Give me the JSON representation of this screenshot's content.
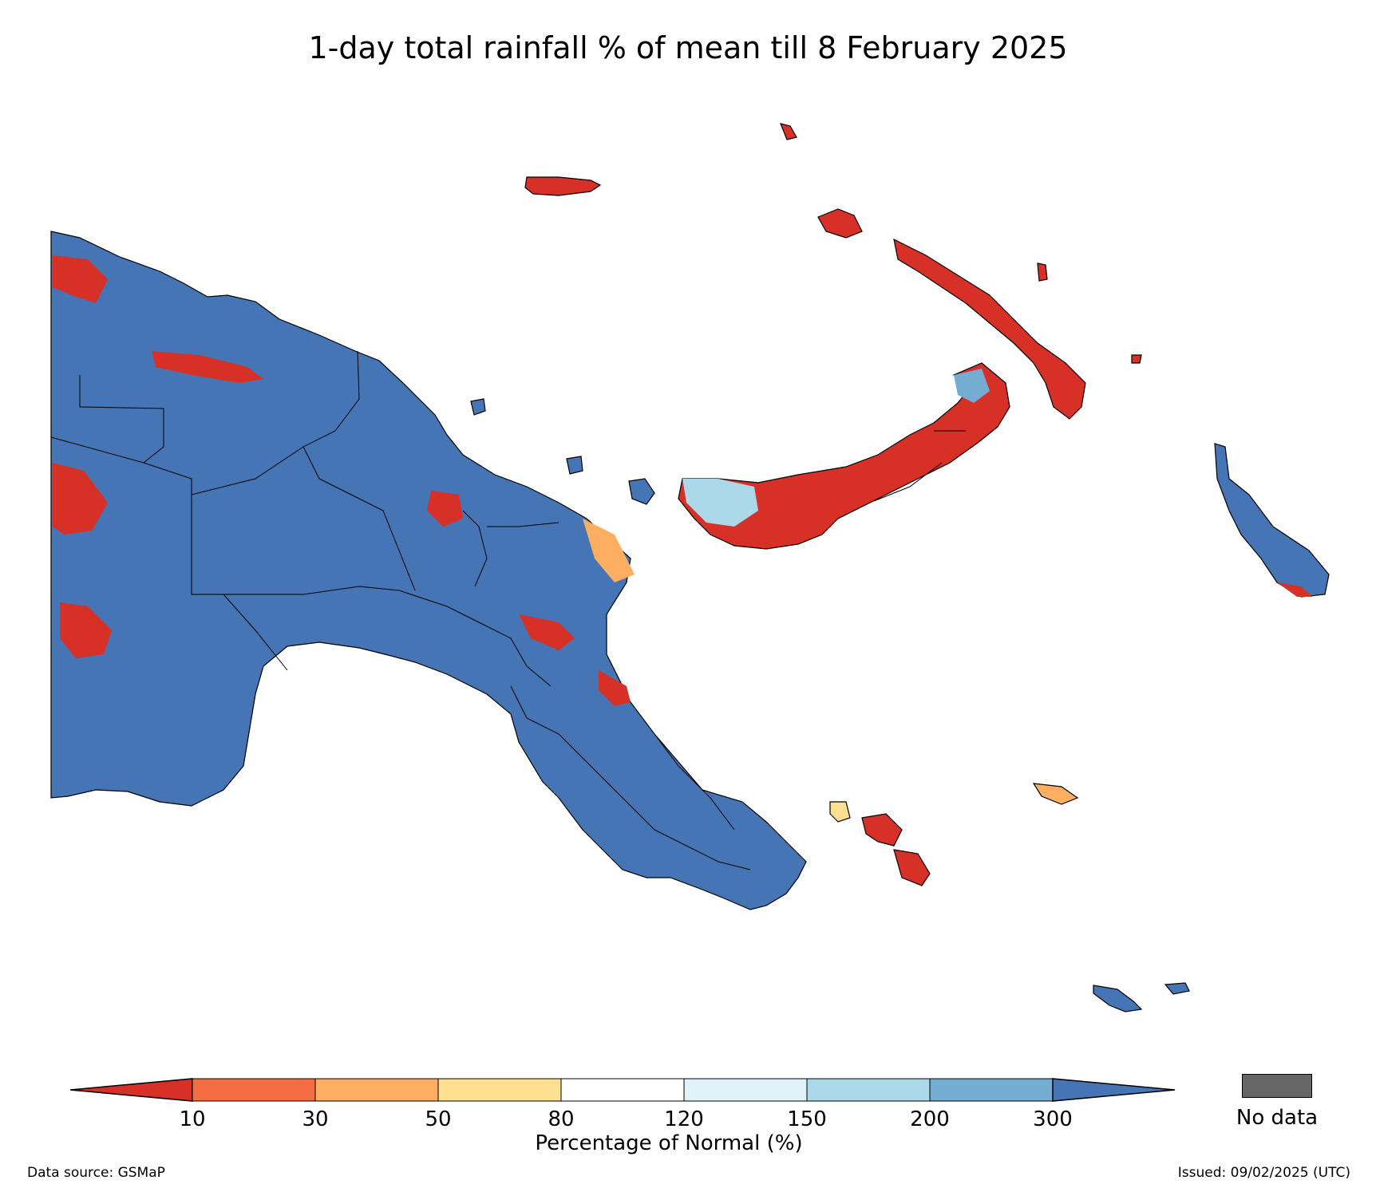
{
  "title": "1-day total rainfall % of mean till 8 February 2025",
  "legend": {
    "ticks": [
      "10",
      "30",
      "50",
      "80",
      "120",
      "150",
      "200",
      "300"
    ],
    "label": "Percentage of Normal (%)",
    "colors": {
      "below_10": "#d73027",
      "10_30": "#f46d43",
      "30_50": "#fdae61",
      "50_80": "#fee090",
      "80_120": "#ffffff",
      "120_150": "#e0f3f8",
      "150_200": "#abd9e9",
      "200_300": "#74add1",
      "above_300": "#4575b4"
    },
    "nodata_label": "No data",
    "nodata_color": "#666666"
  },
  "map": {
    "region": "Papua New Guinea",
    "dominant_category": "above 300",
    "colors": {
      "land_wet": "#4575b4",
      "land_dry": "#d73027",
      "border": "#000000"
    }
  },
  "footer": {
    "source": "Data source: GSMaP",
    "issued": "Issued: 09/02/2025 (UTC)"
  }
}
